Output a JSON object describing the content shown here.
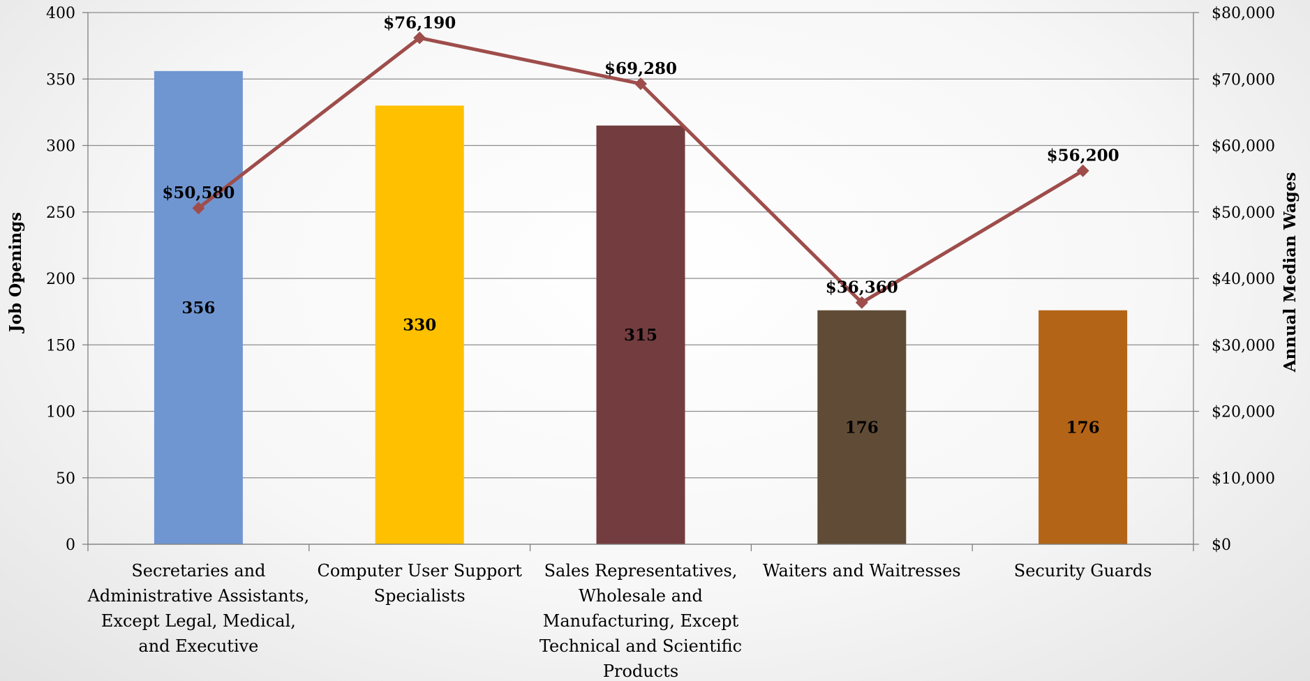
{
  "chart_data": {
    "type": "bar",
    "categories": [
      [
        "Secretaries and",
        "Administrative Assistants,",
        "Except Legal, Medical,",
        "and Executive"
      ],
      [
        "Computer User Support",
        "Specialists"
      ],
      [
        "Sales Representatives,",
        "Wholesale and",
        "Manufacturing, Except",
        "Technical and Scientific",
        "Products"
      ],
      [
        "Waiters and Waitresses"
      ],
      [
        "Security Guards"
      ]
    ],
    "series": [
      {
        "type": "bar",
        "axis": "left",
        "values": [
          356,
          330,
          315,
          176,
          176
        ],
        "labels": [
          "356",
          "330",
          "315",
          "176",
          "176"
        ],
        "colors": [
          "#7096d2",
          "#ffc000",
          "#733d3f",
          "#604c36",
          "#b36416"
        ]
      },
      {
        "type": "line",
        "axis": "right",
        "values": [
          50580,
          76190,
          69280,
          36360,
          56200
        ],
        "labels": [
          "$50,580",
          "$76,190",
          "$69,280",
          "$36,360",
          "$56,200"
        ],
        "color": "#9e4d4b"
      }
    ],
    "ylabel": "Job Openings",
    "y2label": "Annual Median Wages",
    "ylim": [
      0,
      400
    ],
    "y2lim": [
      0,
      80000
    ],
    "yticks": [
      "0",
      "50",
      "100",
      "150",
      "200",
      "250",
      "300",
      "350",
      "400"
    ],
    "y2ticks": [
      "$0",
      "$10,000",
      "$20,000",
      "$30,000",
      "$40,000",
      "$50,000",
      "$60,000",
      "$70,000",
      "$80,000"
    ],
    "grid": true,
    "legend": "none"
  }
}
